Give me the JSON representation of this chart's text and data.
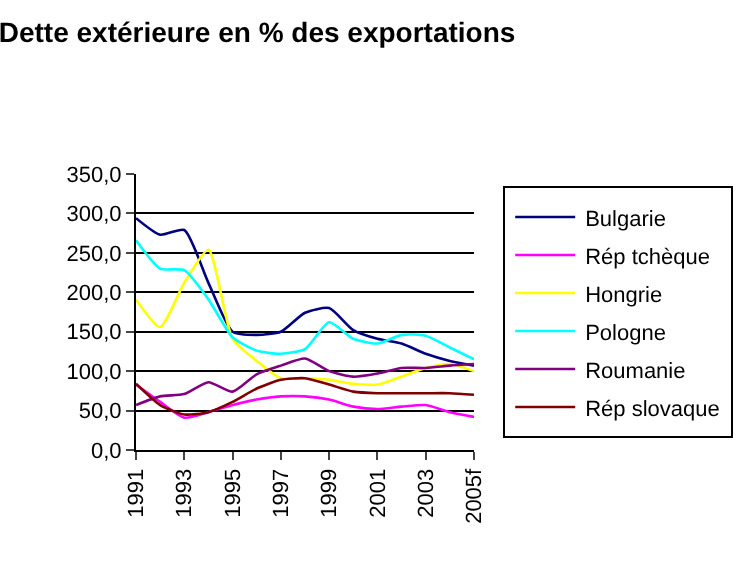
{
  "chart_data": {
    "type": "line",
    "title": "Dette extérieure en % des exportations",
    "categories": [
      "1991",
      null,
      "1993",
      null,
      "1995",
      null,
      "1997",
      null,
      "1999",
      null,
      "2001",
      null,
      "2003",
      null,
      "2005f"
    ],
    "series": [
      {
        "name": "Bulgarie",
        "color": "#000080",
        "values": [
          294,
          273,
          279,
          212,
          150,
          146,
          150,
          174,
          180,
          152,
          141,
          135,
          122,
          113,
          107
        ]
      },
      {
        "name": "Rép tchèque",
        "color": "#ff00ff",
        "values": [
          83,
          61,
          41,
          48,
          57,
          64,
          68,
          68,
          64,
          55,
          52,
          55,
          57,
          48,
          42
        ]
      },
      {
        "name": "Hongrie",
        "color": "#ffff00",
        "values": [
          191,
          156,
          212,
          254,
          141,
          113,
          91,
          91,
          89,
          84,
          83,
          93,
          104,
          109,
          100
        ]
      },
      {
        "name": "Pologne",
        "color": "#00ffff",
        "values": [
          266,
          230,
          228,
          191,
          143,
          126,
          122,
          128,
          162,
          141,
          135,
          146,
          145,
          130,
          115
        ]
      },
      {
        "name": "Roumanie",
        "color": "#800080",
        "values": [
          57,
          68,
          71,
          86,
          74,
          96,
          107,
          116,
          100,
          93,
          97,
          104,
          104,
          107,
          109
        ]
      },
      {
        "name": "Rép slovaque",
        "color": "#800000",
        "values": [
          84,
          57,
          45,
          48,
          61,
          78,
          89,
          91,
          83,
          74,
          72,
          72,
          72,
          72,
          70
        ]
      }
    ],
    "ylim": [
      0,
      350
    ],
    "yticks": [
      {
        "value": 0,
        "label": "0,0"
      },
      {
        "value": 50,
        "label": "50,0"
      },
      {
        "value": 100,
        "label": "100,0"
      },
      {
        "value": 150,
        "label": "150,0"
      },
      {
        "value": 200,
        "label": "200,0"
      },
      {
        "value": 250,
        "label": "250,0"
      },
      {
        "value": 300,
        "label": "300,0"
      },
      {
        "value": 350,
        "label": "350,0"
      }
    ],
    "grid": "y",
    "legend": "right",
    "marker": "none",
    "line_style": "solid"
  }
}
